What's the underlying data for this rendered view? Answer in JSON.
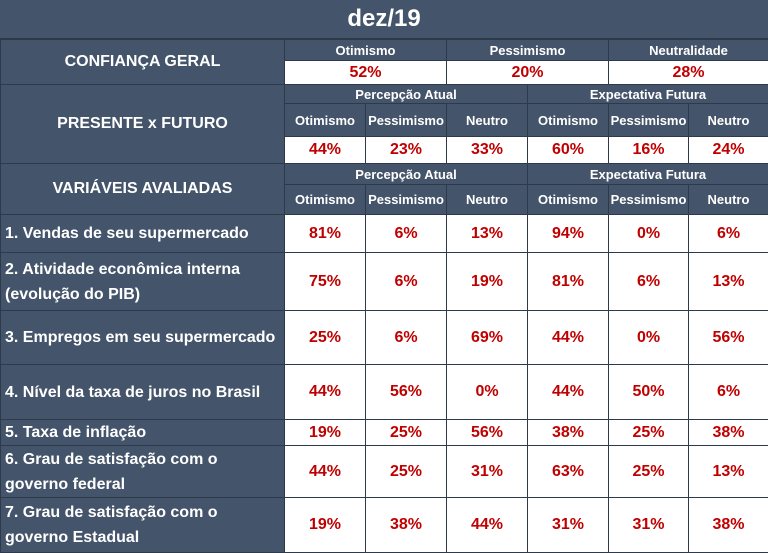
{
  "title": "dez/19",
  "confianca": {
    "label": "CONFIANÇA GERAL",
    "headers": [
      "Otimismo",
      "Pessimismo",
      "Neutralidade"
    ],
    "values": [
      "52%",
      "20%",
      "28%"
    ]
  },
  "presente": {
    "label": "PRESENTE x FUTURO",
    "group_left": "Percepção Atual",
    "group_right": "Expectativa Futura",
    "cols": [
      "Otimismo",
      "Pessimismo",
      "Neutro",
      "Otimismo",
      "Pessimismo",
      "Neutro"
    ],
    "values": [
      "44%",
      "23%",
      "33%",
      "60%",
      "16%",
      "24%"
    ]
  },
  "variaveis": {
    "label": "VARIÁVEIS AVALIADAS",
    "group_left": "Percepção Atual",
    "group_right": "Expectativa Futura",
    "cols": [
      "Otimismo",
      "Pessimismo",
      "Neutro",
      "Otimismo",
      "Pessimismo",
      "Neutro"
    ]
  },
  "rows": [
    {
      "label": "1. Vendas de seu supermercado",
      "values": [
        "81%",
        "6%",
        "13%",
        "94%",
        "0%",
        "6%"
      ]
    },
    {
      "label": "2. Atividade econômica interna (evolução do PIB)",
      "values": [
        "75%",
        "6%",
        "19%",
        "81%",
        "6%",
        "13%"
      ]
    },
    {
      "label": "3. Empregos em seu supermercado",
      "values": [
        "25%",
        "6%",
        "69%",
        "44%",
        "0%",
        "56%"
      ]
    },
    {
      "label": "4. Nível da taxa de juros no Brasil",
      "values": [
        "44%",
        "56%",
        "0%",
        "44%",
        "50%",
        "6%"
      ]
    },
    {
      "label": "5. Taxa de inflação",
      "values": [
        "19%",
        "25%",
        "56%",
        "38%",
        "25%",
        "38%"
      ]
    },
    {
      "label": "6. Grau de satisfação com o governo federal",
      "values": [
        "44%",
        "25%",
        "31%",
        "63%",
        "25%",
        "13%"
      ]
    },
    {
      "label": "7. Grau de satisfação com o governo Estadual",
      "values": [
        "19%",
        "38%",
        "44%",
        "31%",
        "31%",
        "38%"
      ]
    }
  ]
}
